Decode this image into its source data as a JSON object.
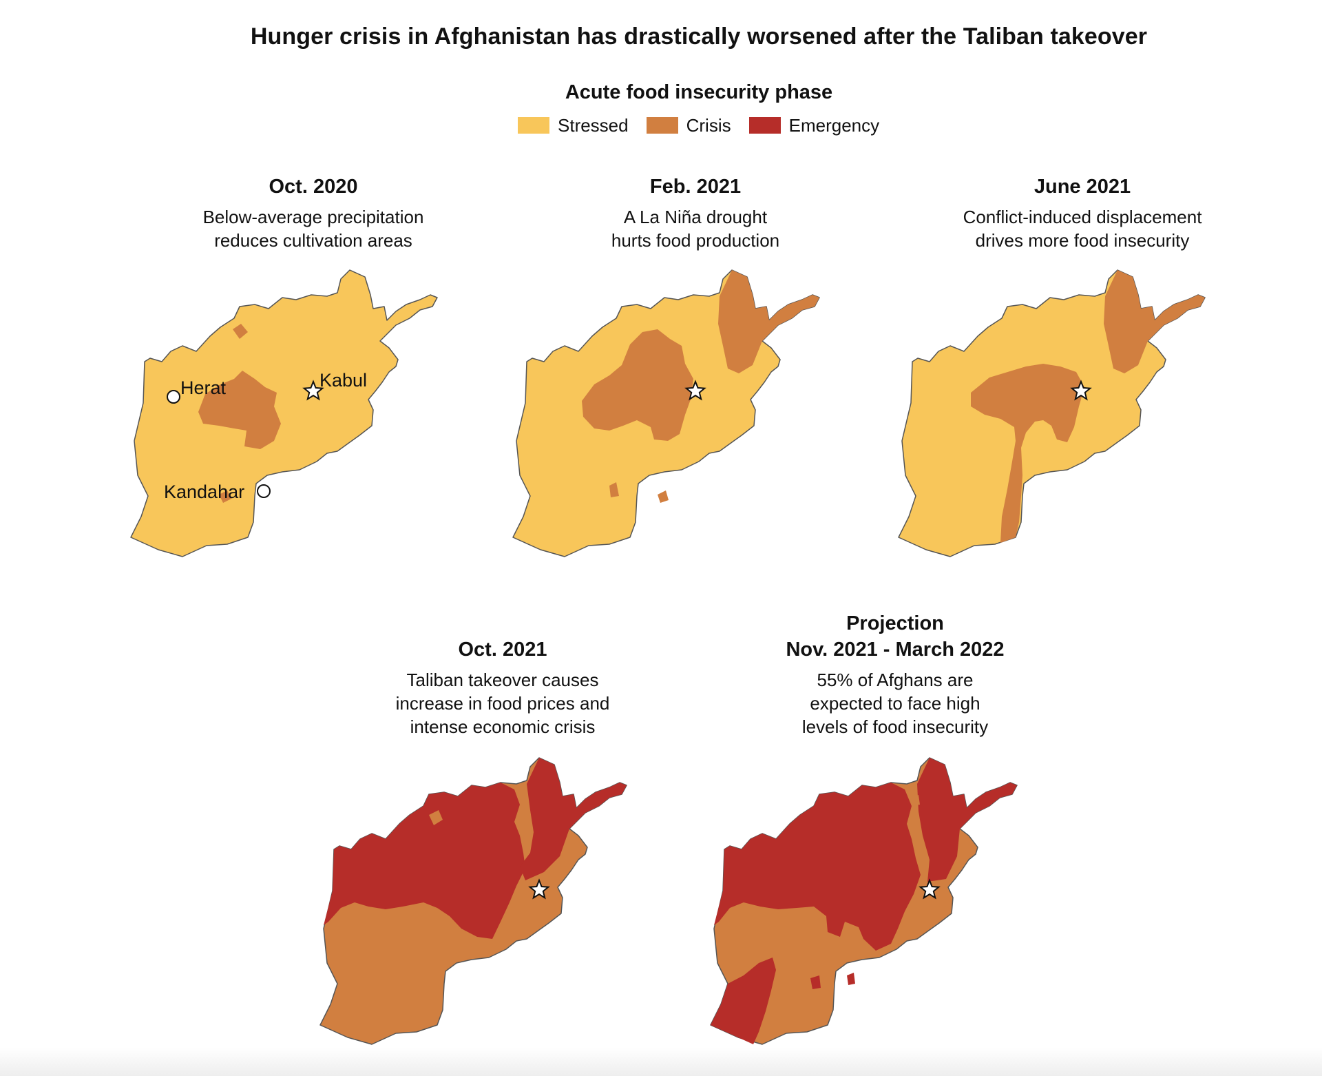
{
  "title": "Hunger crisis in Afghanistan has drastically worsened after the Taliban takeover",
  "legend": {
    "title": "Acute food insecurity phase",
    "items": [
      {
        "label": "Stressed",
        "color": "#F8C65A"
      },
      {
        "label": "Crisis",
        "color": "#D17F40"
      },
      {
        "label": "Emergency",
        "color": "#B62D29"
      }
    ]
  },
  "panels": [
    {
      "date": "Oct. 2020",
      "desc1": "Below-average precipitation",
      "desc2": "reduces cultivation areas"
    },
    {
      "date": "Feb. 2021",
      "desc1": "A La Niña drought",
      "desc2": "hurts food production"
    },
    {
      "date": "June 2021",
      "desc1": "Conflict-induced displacement",
      "desc2": "drives more food insecurity"
    },
    {
      "date": "Oct. 2021",
      "desc1": "Taliban takeover causes",
      "desc2": "increase in food prices and",
      "desc3": "intense economic crisis"
    },
    {
      "date_line1": "Projection",
      "date": "Nov. 2021 - March 2022",
      "desc1": "55% of Afghans are",
      "desc2": "expected to face high",
      "desc3": "levels of food insecurity"
    }
  ],
  "city_labels": {
    "herat": "Herat",
    "kabul": "Kabul",
    "kandahar": "Kandahar"
  },
  "colors": {
    "stressed": "#F8C65A",
    "crisis": "#D17F40",
    "emergency": "#B62D29",
    "outline": "#555555"
  }
}
